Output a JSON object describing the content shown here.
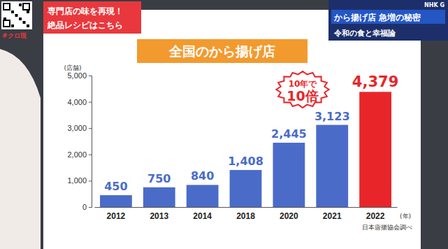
{
  "chart_data": {
    "type": "bar",
    "title": "全国のから揚げ店",
    "categories": [
      "2012",
      "2013",
      "2014",
      "2018",
      "2020",
      "2021",
      "2022"
    ],
    "values": [
      450,
      750,
      840,
      1408,
      2445,
      3123,
      4379
    ],
    "value_labels": [
      "450",
      "750",
      "840",
      "1,408",
      "2,445",
      "3,123",
      "4,379"
    ],
    "colors": [
      "#4a6cc8",
      "#4a6cc8",
      "#4a6cc8",
      "#4a6cc8",
      "#4a6cc8",
      "#4a6cc8",
      "#e8262a"
    ],
    "ylim": [
      0,
      5000
    ],
    "yticks": [
      0,
      {
        "value": 1000,
        "label": "1,000"
      },
      {
        "value": 2000,
        "label": "2,000"
      },
      {
        "value": 3000,
        "label": "3,000"
      },
      {
        "value": 4000,
        "label": "4,000"
      },
      {
        "value": 5000,
        "label": "5,000"
      }
    ],
    "grid": false,
    "data_labels": true,
    "y_label": "(店舗)",
    "x_label": "(年)",
    "annotation": [
      "10年で",
      "10倍"
    ],
    "source": "日本唐揚協会調べ"
  },
  "overlay": {
    "hashtag": "#クロ現",
    "promo": [
      "専門店の味を再現！",
      "絶品レシピはこちら"
    ],
    "headline": "から揚げ店 急増の秘密",
    "subheadline": "令和の食と幸福論",
    "channel": "NHK G"
  }
}
